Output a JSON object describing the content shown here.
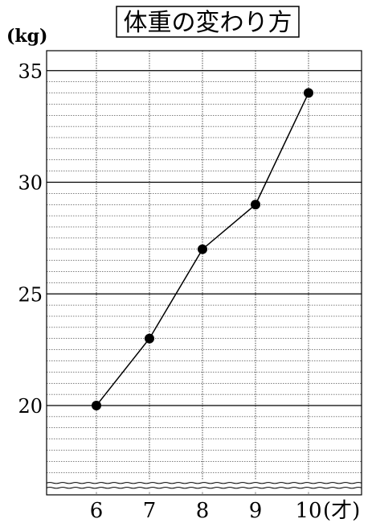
{
  "chart_data": {
    "type": "line",
    "title": "体重の変わり方",
    "y_unit_label": "(kg)",
    "x_unit_label": "(才)",
    "x_categories": [
      "6",
      "7",
      "8",
      "9",
      "10"
    ],
    "y_tick_labels": [
      "20",
      "25",
      "30",
      "35"
    ],
    "ylim": [
      17,
      35
    ],
    "y_axis_break": true,
    "grid": true,
    "series": [
      {
        "values": [
          20,
          23,
          27,
          29,
          34
        ],
        "color": "#000000",
        "marker": "filled-circle"
      }
    ]
  }
}
